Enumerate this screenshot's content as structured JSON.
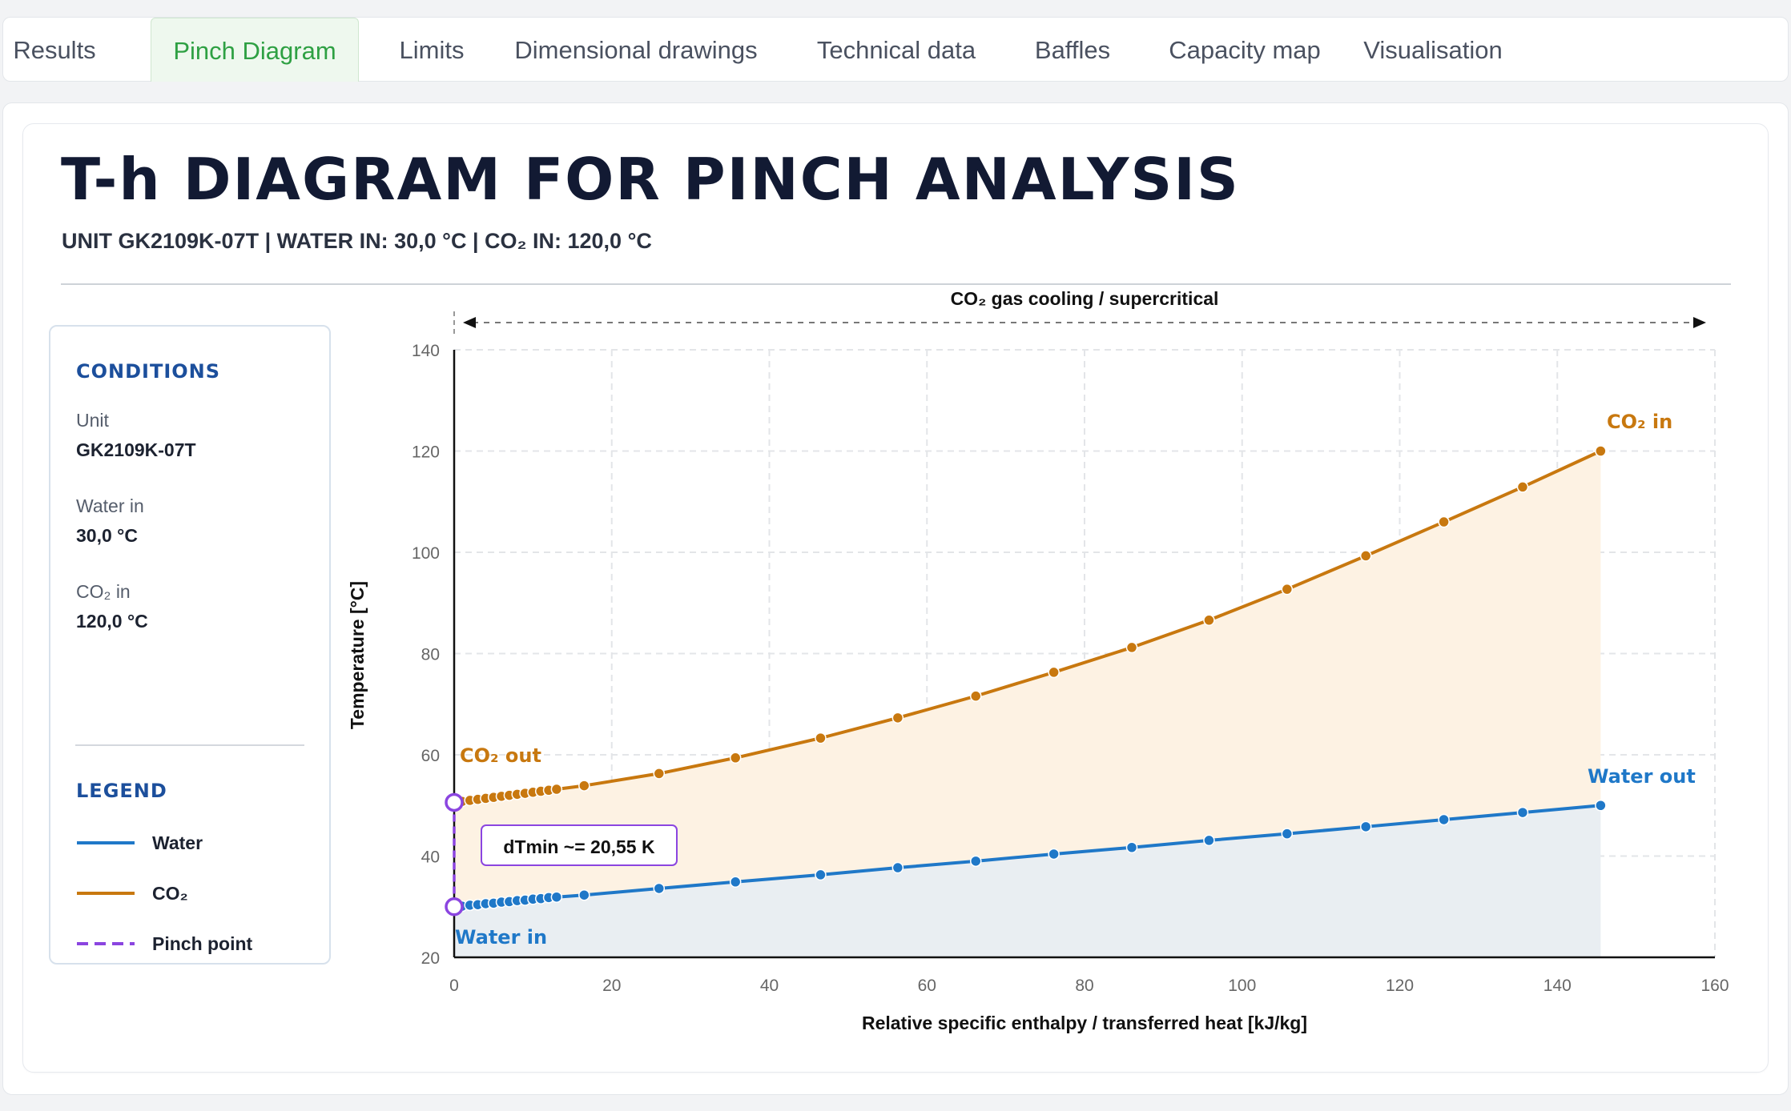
{
  "tabs": [
    {
      "label": "Results",
      "active": false
    },
    {
      "label": "Pinch Diagram",
      "active": true
    },
    {
      "label": "Limits",
      "active": false
    },
    {
      "label": "Dimensional drawings",
      "active": false
    },
    {
      "label": "Technical data",
      "active": false
    },
    {
      "label": "Baffles",
      "active": false
    },
    {
      "label": "Capacity map",
      "active": false
    },
    {
      "label": "Visualisation",
      "active": false
    }
  ],
  "header": {
    "title": "T-h DIAGRAM FOR PINCH ANALYSIS",
    "subtitle": "UNIT GK2109K-07T | WATER IN: 30,0 °C | CO₂ IN: 120,0 °C"
  },
  "conditions": {
    "title": "CONDITIONS",
    "items": [
      {
        "label": "Unit",
        "value": "GK2109K-07T"
      },
      {
        "label": "Water in",
        "value": "30,0 °C"
      },
      {
        "label": "CO₂ in",
        "value": "120,0 °C"
      }
    ]
  },
  "legend": {
    "title": "LEGEND",
    "items": [
      {
        "label": "Water",
        "color": "#1f78c8",
        "style": "solid"
      },
      {
        "label": "CO₂",
        "color": "#c8780f",
        "style": "solid"
      },
      {
        "label": "Pinch point",
        "color": "#8b45e0",
        "style": "dashed"
      }
    ]
  },
  "chart_data": {
    "type": "line",
    "xlabel": "Relative specific enthalpy / transferred heat [kJ/kg]",
    "ylabel": "Temperature [°C]",
    "xlim": [
      0,
      160
    ],
    "ylim": [
      20,
      140
    ],
    "xticks": [
      0,
      20,
      40,
      60,
      80,
      100,
      120,
      140,
      160
    ],
    "yticks": [
      20,
      40,
      60,
      80,
      100,
      120,
      140
    ],
    "grid": true,
    "region_label": "CO₂ gas cooling / supercritical",
    "series": [
      {
        "name": "CO₂",
        "color": "#c8780f",
        "x": [
          0,
          1,
          2,
          3,
          4,
          5,
          6,
          7,
          8,
          9,
          10,
          11,
          12,
          13,
          16.5,
          26,
          35.7,
          46.5,
          56.3,
          66.2,
          76.1,
          86,
          95.8,
          105.7,
          115.7,
          125.6,
          135.6,
          145.5
        ],
        "y": [
          50.6,
          50.8,
          51.0,
          51.2,
          51.4,
          51.6,
          51.8,
          52.0,
          52.2,
          52.4,
          52.6,
          52.8,
          53.0,
          53.2,
          53.9,
          56.3,
          59.4,
          63.3,
          67.3,
          71.6,
          76.3,
          81.2,
          86.6,
          92.7,
          99.3,
          106.0,
          112.9,
          120.0
        ]
      },
      {
        "name": "Water",
        "color": "#1f78c8",
        "x": [
          0,
          1,
          2,
          3,
          4,
          5,
          6,
          7,
          8,
          9,
          10,
          11,
          12,
          13,
          16.5,
          26,
          35.7,
          46.5,
          56.3,
          66.2,
          76.1,
          86,
          95.8,
          105.7,
          115.7,
          125.6,
          135.6,
          145.5
        ],
        "y": [
          30.0,
          30.1,
          30.3,
          30.4,
          30.6,
          30.7,
          30.9,
          31.0,
          31.2,
          31.3,
          31.5,
          31.6,
          31.8,
          31.9,
          32.3,
          33.6,
          34.9,
          36.3,
          37.7,
          39.0,
          40.4,
          41.7,
          43.1,
          44.4,
          45.8,
          47.2,
          48.6,
          50.0
        ]
      }
    ],
    "annotations": [
      {
        "text": "CO₂ in",
        "color": "#c8780f"
      },
      {
        "text": "CO₂ out",
        "color": "#c8780f"
      },
      {
        "text": "Water out",
        "color": "#1f78c8"
      },
      {
        "text": "Water in",
        "color": "#1f78c8"
      },
      {
        "text": "dTmin ~= 20,55 K",
        "color": "#8b45e0"
      }
    ],
    "pinch": {
      "x": 0,
      "y_top": 50.6,
      "y_bottom": 30.0
    }
  }
}
